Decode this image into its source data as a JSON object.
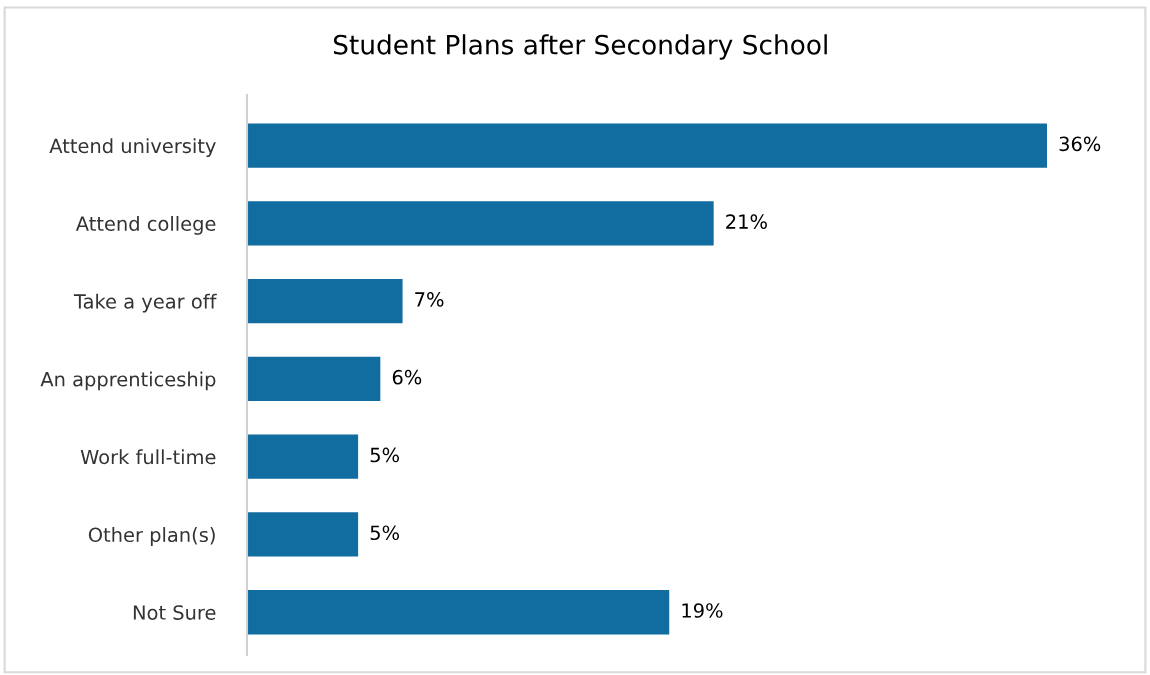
{
  "chart_data": {
    "type": "bar",
    "orientation": "horizontal",
    "title": "Student Plans after Secondary School",
    "categories": [
      "Attend university",
      "Attend college",
      "Take a year off",
      "An apprenticeship",
      "Work full-time",
      "Other plan(s)",
      "Not Sure"
    ],
    "values": [
      36,
      21,
      7,
      6,
      5,
      5,
      19
    ],
    "value_labels": [
      "36%",
      "21%",
      "7%",
      "6%",
      "5%",
      "5%",
      "19%"
    ],
    "color": "#116ca0",
    "grid": false,
    "legend": false,
    "tick_labels": "y"
  }
}
